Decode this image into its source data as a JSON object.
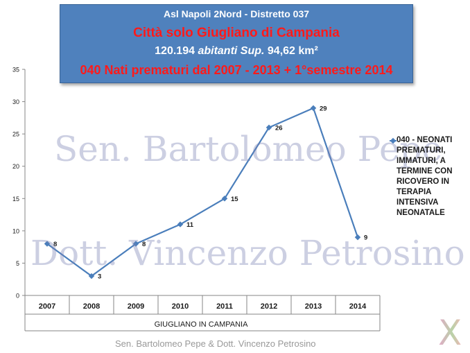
{
  "header": {
    "line1": "Asl Napoli 2Nord - Distretto 037",
    "line2": "Città solo Giugliano di Campania",
    "line3_num": "120.194",
    "line3_italic": "abitanti Sup.",
    "line3_tail": "94,62 km²",
    "line4": "040 Nati prematuri dal 2007 - 2013 + 1°semestre 2014"
  },
  "watermarks": {
    "line1": "Sen. Bartolomeo Pepe",
    "line2": "Dott. Vincenzo Petrosino"
  },
  "footer": "Sen. Bartolomeo Pepe &  Dott. Vincenzo Petrosino",
  "logo": "X",
  "chart_data": {
    "type": "line",
    "categories": [
      "2007",
      "2008",
      "2009",
      "2010",
      "2011",
      "2012",
      "2013",
      "2014"
    ],
    "series": [
      {
        "name": "040 - NEONATI PREMATURI, IMMATURI, A TERMINE  CON RICOVERO IN TERAPIA INTENSIVA NEONATALE",
        "values": [
          8,
          3,
          8,
          11,
          15,
          26,
          29,
          9
        ],
        "color": "#4a7ebb"
      }
    ],
    "xlabel": "GIUGLIANO IN CAMPANIA",
    "ylabel": "",
    "ylim": [
      0,
      35
    ],
    "yticks": [
      0,
      5,
      10,
      15,
      20,
      25,
      30,
      35
    ],
    "grid": false,
    "legend": "right",
    "data_labels": true
  }
}
